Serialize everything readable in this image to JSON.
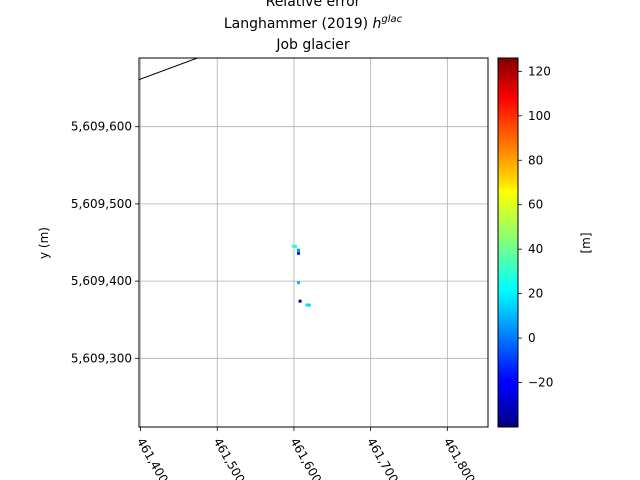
{
  "chart_data": {
    "type": "heatmap",
    "title_lines": [
      "Relative error",
      "Langhammer (2019) ",
      "Job glacier"
    ],
    "title_math": "glac",
    "title_math_base": "h",
    "xlabel": "",
    "ylabel": "y (m)",
    "xlim": [
      461398,
      461853
    ],
    "ylim": [
      5609211,
      5609689
    ],
    "xticks": [
      461400,
      461500,
      461600,
      461700,
      461800
    ],
    "xtick_labels": [
      "461,400",
      "461,500",
      "461,600",
      "461,700",
      "461,800"
    ],
    "yticks": [
      5609300,
      5609400,
      5609500,
      5609600
    ],
    "ytick_labels": [
      "5,609,300",
      "5,609,400",
      "5,609,500",
      "5,609,600"
    ],
    "grid": true,
    "colormap": "jet",
    "colorbar": {
      "label": "[m]",
      "range": [
        -40,
        126
      ],
      "ticks": [
        -20,
        0,
        20,
        40,
        60,
        80,
        100,
        120
      ],
      "tick_labels": [
        "−20",
        "0",
        "20",
        "40",
        "60",
        "80",
        "100",
        "120"
      ]
    },
    "outline": [
      [
        461398,
        5609661
      ],
      [
        461474,
        5609689
      ]
    ],
    "cells": [
      {
        "x": 461599,
        "y": 5609445,
        "value": 35
      },
      {
        "x": 461602,
        "y": 5609445,
        "value": 22
      },
      {
        "x": 461606,
        "y": 5609440,
        "value": 5
      },
      {
        "x": 461606,
        "y": 5609436,
        "value": -15
      },
      {
        "x": 461606,
        "y": 5609398,
        "value": 10
      },
      {
        "x": 461608,
        "y": 5609374,
        "value": -35
      },
      {
        "x": 461617,
        "y": 5609369,
        "value": 18
      },
      {
        "x": 461620,
        "y": 5609369,
        "value": 15
      }
    ]
  }
}
